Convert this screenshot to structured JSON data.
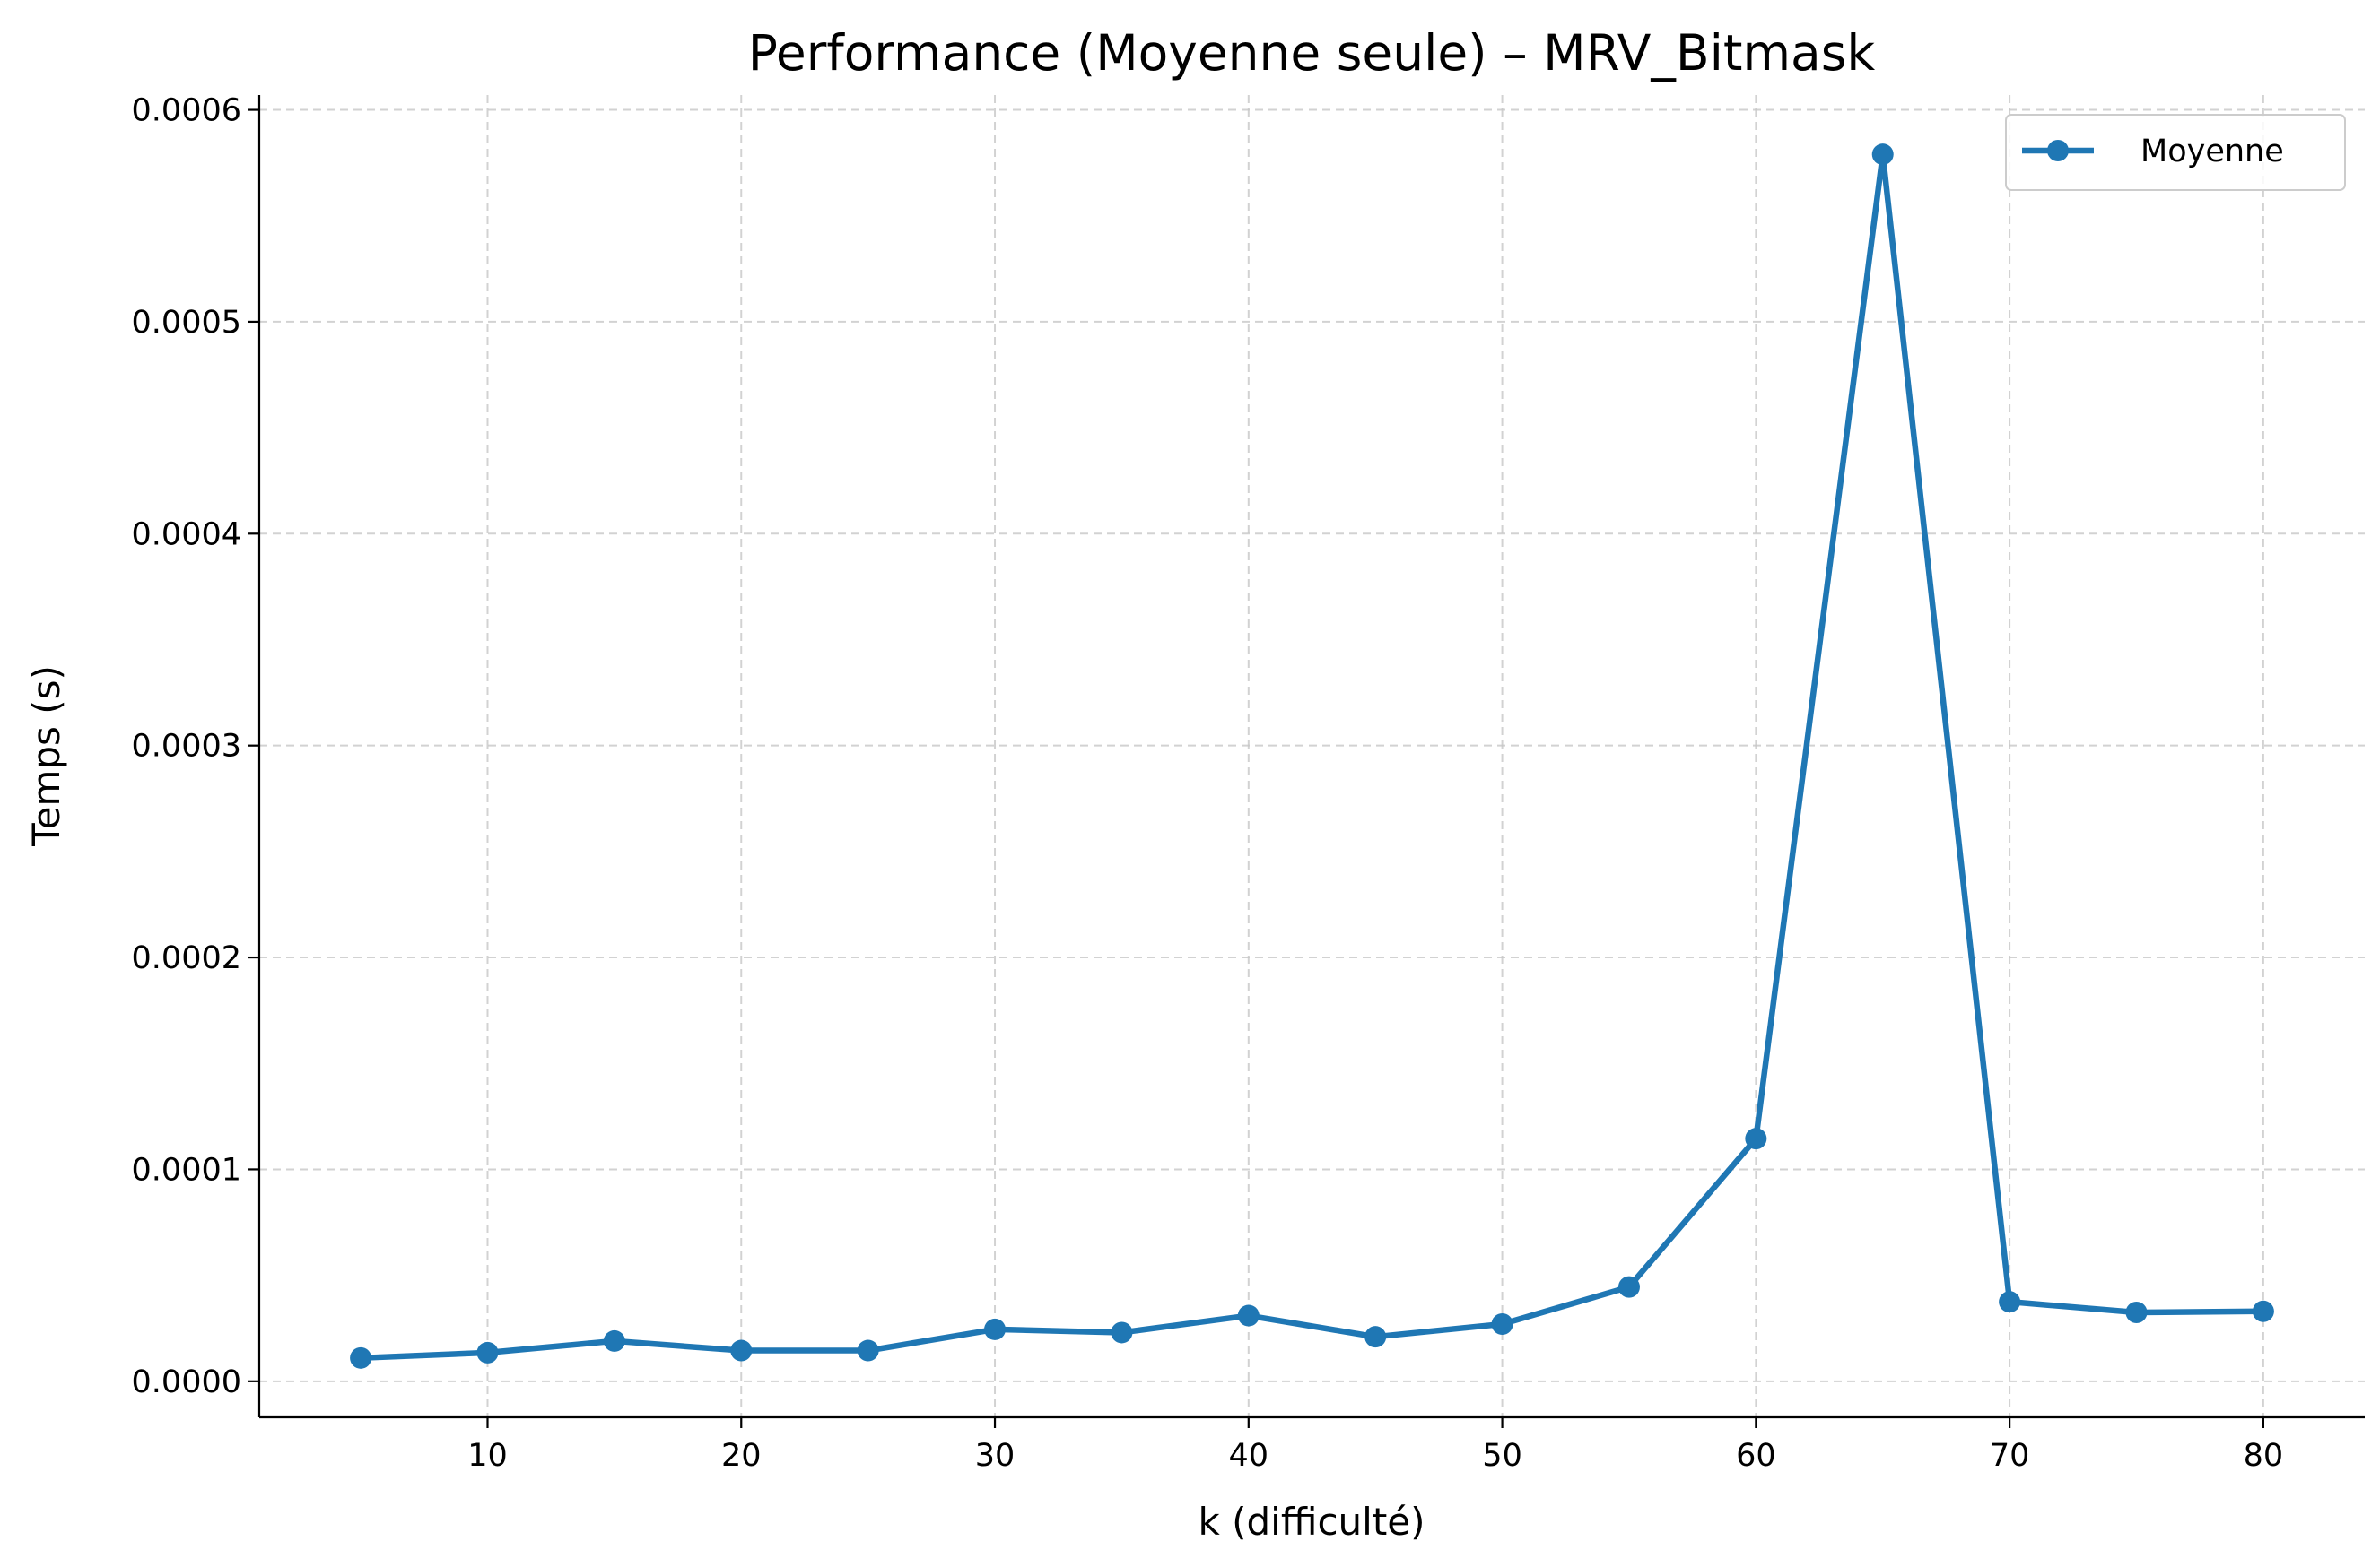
{
  "chart_data": {
    "type": "line",
    "title": "Performance (Moyenne seule) – MRV_Bitmask",
    "xlabel": "k (difficulté)",
    "ylabel": "Temps (s)",
    "xlim": [
      1,
      84
    ],
    "ylim": [
      -1.7e-05,
      0.000607
    ],
    "x_ticks": [
      10,
      20,
      30,
      40,
      50,
      60,
      70,
      80
    ],
    "x_tick_labels": [
      "10",
      "20",
      "30",
      "40",
      "50",
      "60",
      "70",
      "80"
    ],
    "y_ticks": [
      0,
      0.0001,
      0.0002,
      0.0003,
      0.0004,
      0.0005,
      0.0006
    ],
    "y_tick_labels": [
      "0.0000",
      "0.0001",
      "0.0002",
      "0.0003",
      "0.0004",
      "0.0005",
      "0.0006"
    ],
    "grid": true,
    "legend_position": "top-right",
    "series": [
      {
        "name": "Moyenne",
        "color": "#1f77b4",
        "marker": "circle",
        "x": [
          5,
          10,
          15,
          20,
          25,
          30,
          35,
          40,
          45,
          50,
          55,
          60,
          65,
          70,
          75,
          80
        ],
        "y": [
          1.1e-05,
          1.35e-05,
          1.9e-05,
          1.45e-05,
          1.45e-05,
          2.45e-05,
          2.3e-05,
          3.1e-05,
          2.1e-05,
          2.7e-05,
          4.45e-05,
          0.0001145,
          0.000579,
          3.75e-05,
          3.25e-05,
          3.3e-05
        ]
      }
    ]
  }
}
